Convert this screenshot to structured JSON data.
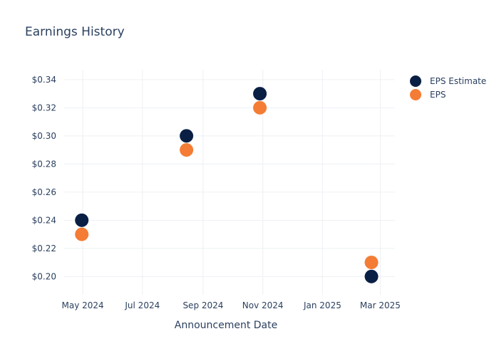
{
  "chart_data": {
    "type": "scatter",
    "title": "Earnings History",
    "xlabel": "Announcement Date",
    "ylabel": "",
    "x_ticks": [
      "May 2024",
      "Jul 2024",
      "Sep 2024",
      "Nov 2024",
      "Jan 2025",
      "Mar 2025"
    ],
    "y_ticks": [
      "$0.20",
      "$0.22",
      "$0.24",
      "$0.26",
      "$0.28",
      "$0.30",
      "$0.32",
      "$0.34"
    ],
    "xlim": [
      "2024-04-12",
      "2025-03-16"
    ],
    "ylim": [
      0.187,
      0.347
    ],
    "grid": true,
    "legend_position": "right",
    "series": [
      {
        "name": "EPS Estimate",
        "color": "#0a1f44",
        "points": [
          {
            "x": "2024-04-30",
            "y": 0.24
          },
          {
            "x": "2024-08-15",
            "y": 0.3
          },
          {
            "x": "2024-10-29",
            "y": 0.33
          },
          {
            "x": "2025-02-20",
            "y": 0.2
          }
        ]
      },
      {
        "name": "EPS",
        "color": "#f47c35",
        "points": [
          {
            "x": "2024-04-30",
            "y": 0.23
          },
          {
            "x": "2024-08-15",
            "y": 0.29
          },
          {
            "x": "2024-10-29",
            "y": 0.32
          },
          {
            "x": "2025-02-20",
            "y": 0.21
          }
        ]
      }
    ]
  }
}
